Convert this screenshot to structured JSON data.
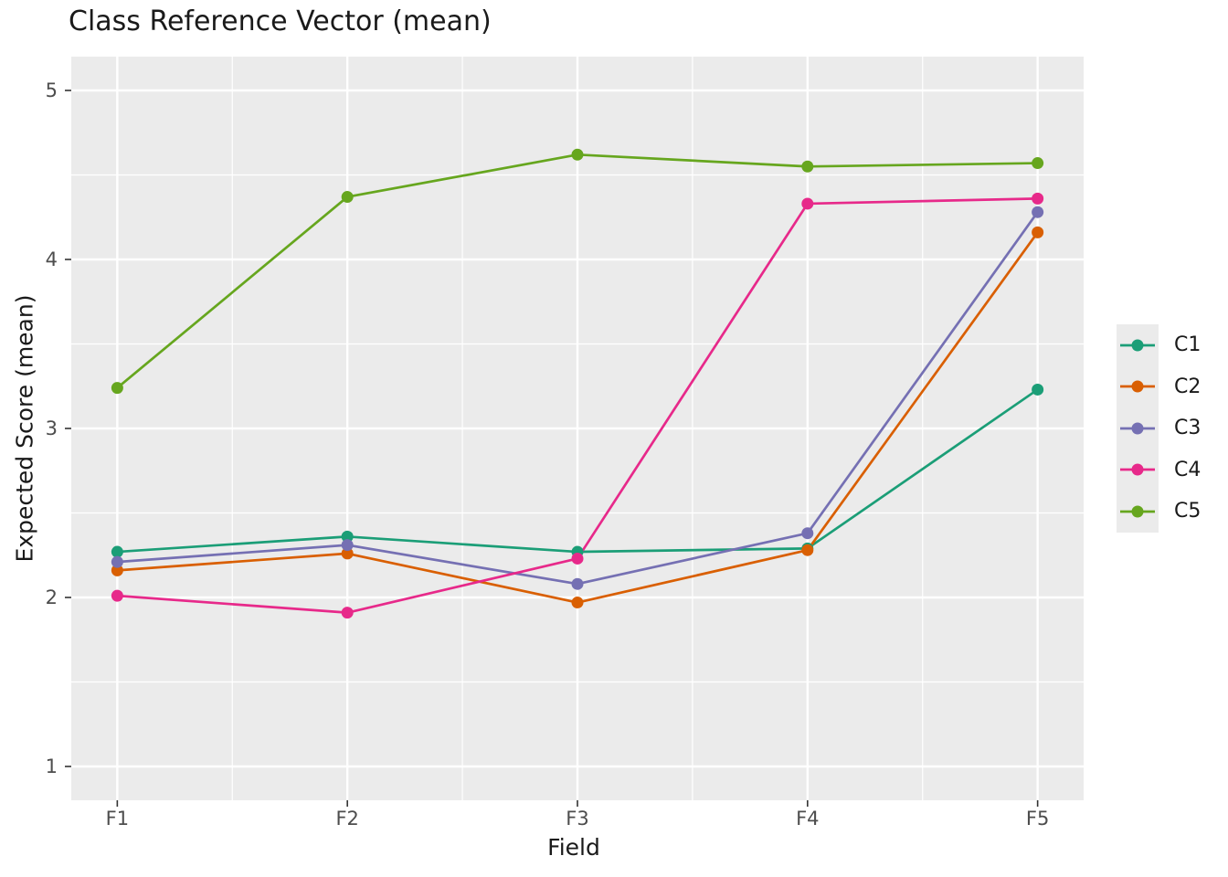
{
  "chart_data": {
    "type": "line",
    "title": "Class Reference Vector (mean)",
    "xlabel": "Field",
    "ylabel": "Expected Score (mean)",
    "categories": [
      "F1",
      "F2",
      "F3",
      "F4",
      "F5"
    ],
    "y_ticks": [
      1,
      2,
      3,
      4,
      5
    ],
    "y_minor_ticks": [
      1.5,
      2.5,
      3.5,
      4.5
    ],
    "ylim": [
      0.8,
      5.2
    ],
    "xlim": [
      0.8,
      5.2
    ],
    "grid": "white major and minor gridlines on gray panel",
    "legend_position": "right",
    "series": [
      {
        "name": "C1",
        "color": "#1B9E77",
        "values": [
          2.27,
          2.36,
          2.27,
          2.29,
          3.23
        ]
      },
      {
        "name": "C2",
        "color": "#D95F02",
        "values": [
          2.16,
          2.26,
          1.97,
          2.28,
          4.16
        ]
      },
      {
        "name": "C3",
        "color": "#7570B3",
        "values": [
          2.21,
          2.31,
          2.08,
          2.38,
          4.28
        ]
      },
      {
        "name": "C4",
        "color": "#E7298A",
        "values": [
          2.01,
          1.91,
          2.23,
          4.33,
          4.36
        ]
      },
      {
        "name": "C5",
        "color": "#66A61E",
        "values": [
          3.24,
          4.37,
          4.62,
          4.55,
          4.57
        ]
      }
    ]
  },
  "style": {
    "panel_bg": "#EBEBEB",
    "grid_color": "#FFFFFF",
    "tick_label_color": "#4D4D4D",
    "tick_mark_color": "#333333",
    "text_color": "#1A1A1A",
    "legend_key_bg": "#EBEBEB"
  }
}
